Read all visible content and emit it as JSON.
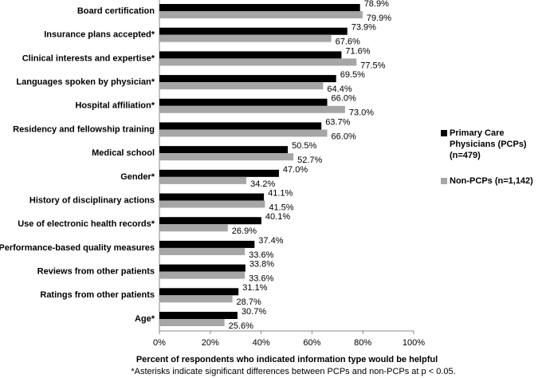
{
  "chart_data": {
    "type": "bar",
    "orientation": "horizontal",
    "categories": [
      "Board certification",
      "Insurance plans accepted*",
      "Clinical interests and expertise*",
      "Languages spoken by physician*",
      "Hospital affiliation*",
      "Residency and fellowship training",
      "Medical school",
      "Gender*",
      "History of disciplinary actions",
      "Use of electronic health records*",
      "Performance-based quality measures",
      "Reviews from other patients",
      "Ratings from other patients",
      "Age*"
    ],
    "series": [
      {
        "name": "Primary Care Physicians (PCPs) (n=479)",
        "color": "#000000",
        "values": [
          78.9,
          73.9,
          71.6,
          69.5,
          66.0,
          63.7,
          50.5,
          47.0,
          41.1,
          40.1,
          37.4,
          33.8,
          31.1,
          30.7
        ],
        "value_labels": [
          "78.9%",
          "73.9%",
          "71.6%",
          "69.5%",
          "66.0%",
          "63.7%",
          "50.5%",
          "47.0%",
          "41.1%",
          "40.1%",
          "37.4%",
          "33.8%",
          "31.1%",
          "30.7%"
        ]
      },
      {
        "name": "Non-PCPs (n=1,142)",
        "color": "#a6a6a6",
        "values": [
          79.9,
          67.6,
          77.5,
          64.4,
          73.0,
          66.0,
          52.7,
          34.2,
          41.5,
          26.9,
          33.6,
          33.6,
          28.7,
          25.6
        ],
        "value_labels": [
          "79.9%",
          "67.6%",
          "77.5%",
          "64.4%",
          "73.0%",
          "66.0%",
          "52.7%",
          "34.2%",
          "41.5%",
          "26.9%",
          "33.6%",
          "33.6%",
          "28.7%",
          "25.6%"
        ]
      }
    ],
    "xlim": [
      0,
      100
    ],
    "xticks": [
      {
        "value": 0,
        "label": "0%"
      },
      {
        "value": 20,
        "label": "20%"
      },
      {
        "value": 40,
        "label": "40%"
      },
      {
        "value": 60,
        "label": "60%"
      },
      {
        "value": 80,
        "label": "80%"
      },
      {
        "value": 100,
        "label": "100%"
      }
    ],
    "x_label": "Percent of respondents who indicated information type would be helpful",
    "note": "*Asterisks indicate significant differences between PCPs and non-PCPs at p < 0.05.",
    "legend": "right"
  }
}
